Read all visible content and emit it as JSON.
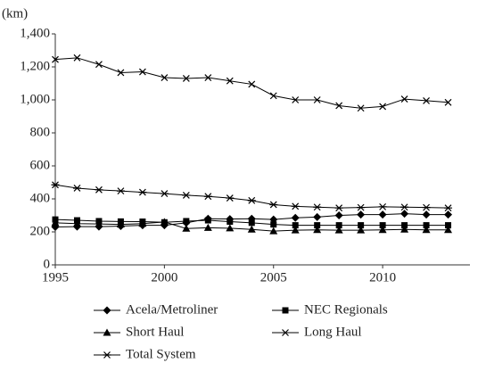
{
  "chart_data": {
    "type": "line",
    "unit_label": "(km)",
    "x": [
      1995,
      1996,
      1997,
      1998,
      1999,
      2000,
      2001,
      2002,
      2003,
      2004,
      2005,
      2006,
      2007,
      2008,
      2009,
      2010,
      2011,
      2012,
      2013
    ],
    "xlim": [
      1995,
      2014
    ],
    "xticks": [
      1995,
      2000,
      2005,
      2010
    ],
    "ylim": [
      0,
      1400
    ],
    "yticks": [
      0,
      200,
      400,
      600,
      800,
      {
        "value": 1000,
        "label": "1,000"
      },
      {
        "value": 1200,
        "label": "1,200"
      },
      {
        "value": 1400,
        "label": "1,400"
      }
    ],
    "series": [
      {
        "name": "Acela/Metroliner",
        "color": "#000000",
        "marker": "diamond",
        "values": [
          230,
          232,
          232,
          235,
          240,
          240,
          255,
          280,
          278,
          280,
          275,
          285,
          290,
          300,
          305,
          305,
          310,
          305,
          305
        ]
      },
      {
        "name": "NEC Regionals",
        "color": "#000000",
        "marker": "square",
        "values": [
          275,
          270,
          265,
          263,
          262,
          258,
          265,
          270,
          262,
          255,
          245,
          240,
          240,
          240,
          240,
          240,
          240,
          240,
          240
        ]
      },
      {
        "name": "Short Haul",
        "color": "#000000",
        "marker": "triangle",
        "values": [
          255,
          250,
          248,
          245,
          250,
          260,
          220,
          225,
          222,
          215,
          205,
          210,
          212,
          210,
          210,
          212,
          215,
          212,
          212
        ]
      },
      {
        "name": "Long Haul",
        "color": "#000000",
        "marker": "x",
        "values": [
          1245,
          1255,
          1215,
          1165,
          1170,
          1135,
          1130,
          1135,
          1115,
          1095,
          1025,
          1000,
          1000,
          965,
          950,
          960,
          1005,
          995,
          985
        ]
      },
      {
        "name": "Total System",
        "color": "#000000",
        "marker": "asterisk",
        "values": [
          485,
          465,
          455,
          448,
          440,
          432,
          422,
          415,
          405,
          390,
          365,
          355,
          350,
          345,
          348,
          352,
          350,
          348,
          345
        ]
      }
    ]
  }
}
